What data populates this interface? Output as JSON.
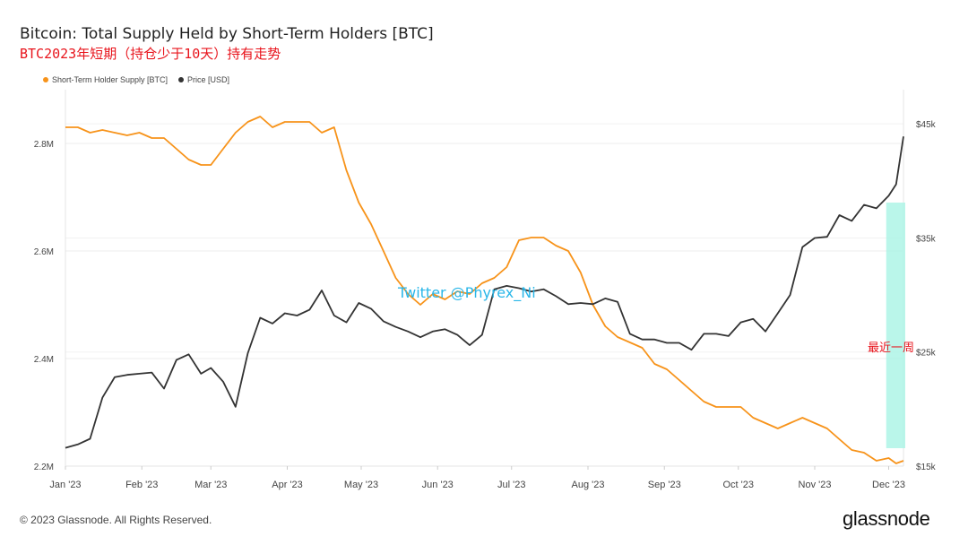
{
  "header": {
    "title": "Bitcoin: Total Supply Held by Short-Term Holders [BTC]",
    "subtitle": "BTC2023年短期（持仓少于10天）持有走势"
  },
  "legend": [
    {
      "label": "Short-Term Holder Supply [BTC]",
      "color": "#f7931a"
    },
    {
      "label": "Price [USD]",
      "color": "#333333"
    }
  ],
  "annotations": {
    "watermark": "Twitter @Phyrex_Ni",
    "last_week": "最近一周"
  },
  "footer": {
    "copyright": "© 2023 Glassnode. All Rights Reserved.",
    "logo": "glassnode"
  },
  "chart_data": {
    "type": "line",
    "title": "Bitcoin: Total Supply Held by Short-Term Holders [BTC]",
    "x_ticks": [
      "Jan '23",
      "Feb '23",
      "Mar '23",
      "Apr '23",
      "May '23",
      "Jun '23",
      "Jul '23",
      "Aug '23",
      "Sep '23",
      "Oct '23",
      "Nov '23",
      "Dec '23"
    ],
    "x_range": [
      "2023-01-01",
      "2023-12-07"
    ],
    "y_left": {
      "ticks": [
        "2.2M",
        "2.4M",
        "2.6M",
        "2.8M"
      ],
      "range": [
        2200000,
        2900000
      ]
    },
    "y_right": {
      "ticks": [
        "$15k",
        "$25k",
        "$35k",
        "$45k"
      ],
      "range": [
        15000,
        48000
      ]
    },
    "grid": true,
    "legend_position": "top-left",
    "series": [
      {
        "name": "Short-Term Holder Supply [BTC]",
        "axis": "left",
        "color": "#f7931a",
        "x": [
          "2023-01-01",
          "2023-01-06",
          "2023-01-11",
          "2023-01-16",
          "2023-01-21",
          "2023-01-26",
          "2023-01-31",
          "2023-02-05",
          "2023-02-10",
          "2023-02-15",
          "2023-02-20",
          "2023-02-25",
          "2023-03-01",
          "2023-03-06",
          "2023-03-11",
          "2023-03-16",
          "2023-03-21",
          "2023-03-26",
          "2023-03-31",
          "2023-04-05",
          "2023-04-10",
          "2023-04-15",
          "2023-04-20",
          "2023-04-25",
          "2023-04-30",
          "2023-05-05",
          "2023-05-10",
          "2023-05-15",
          "2023-05-20",
          "2023-05-25",
          "2023-05-30",
          "2023-06-04",
          "2023-06-09",
          "2023-06-14",
          "2023-06-19",
          "2023-06-24",
          "2023-06-29",
          "2023-07-04",
          "2023-07-09",
          "2023-07-14",
          "2023-07-19",
          "2023-07-24",
          "2023-07-29",
          "2023-08-03",
          "2023-08-08",
          "2023-08-13",
          "2023-08-18",
          "2023-08-23",
          "2023-08-28",
          "2023-09-02",
          "2023-09-07",
          "2023-09-12",
          "2023-09-17",
          "2023-09-22",
          "2023-09-27",
          "2023-10-02",
          "2023-10-07",
          "2023-10-12",
          "2023-10-17",
          "2023-10-22",
          "2023-10-27",
          "2023-11-01",
          "2023-11-06",
          "2023-11-11",
          "2023-11-16",
          "2023-11-21",
          "2023-11-26",
          "2023-12-01",
          "2023-12-04",
          "2023-12-07"
        ],
        "values": [
          2830000,
          2830000,
          2820000,
          2825000,
          2820000,
          2815000,
          2820000,
          2810000,
          2810000,
          2790000,
          2770000,
          2760000,
          2760000,
          2790000,
          2820000,
          2840000,
          2850000,
          2830000,
          2840000,
          2840000,
          2840000,
          2820000,
          2830000,
          2750000,
          2690000,
          2650000,
          2600000,
          2550000,
          2520000,
          2500000,
          2520000,
          2510000,
          2525000,
          2520000,
          2540000,
          2550000,
          2570000,
          2620000,
          2625000,
          2625000,
          2610000,
          2600000,
          2560000,
          2500000,
          2460000,
          2440000,
          2430000,
          2420000,
          2390000,
          2380000,
          2360000,
          2340000,
          2320000,
          2310000,
          2310000,
          2310000,
          2290000,
          2280000,
          2270000,
          2280000,
          2290000,
          2280000,
          2270000,
          2250000,
          2230000,
          2225000,
          2210000,
          2215000,
          2205000,
          2210000
        ]
      },
      {
        "name": "Price [USD]",
        "axis": "right",
        "color": "#333333",
        "x": [
          "2023-01-01",
          "2023-01-06",
          "2023-01-11",
          "2023-01-16",
          "2023-01-21",
          "2023-01-26",
          "2023-01-31",
          "2023-02-05",
          "2023-02-10",
          "2023-02-15",
          "2023-02-20",
          "2023-02-25",
          "2023-03-01",
          "2023-03-06",
          "2023-03-11",
          "2023-03-16",
          "2023-03-21",
          "2023-03-26",
          "2023-03-31",
          "2023-04-05",
          "2023-04-10",
          "2023-04-15",
          "2023-04-20",
          "2023-04-25",
          "2023-04-30",
          "2023-05-05",
          "2023-05-10",
          "2023-05-15",
          "2023-05-20",
          "2023-05-25",
          "2023-05-30",
          "2023-06-04",
          "2023-06-09",
          "2023-06-14",
          "2023-06-19",
          "2023-06-24",
          "2023-06-29",
          "2023-07-04",
          "2023-07-09",
          "2023-07-14",
          "2023-07-19",
          "2023-07-24",
          "2023-07-29",
          "2023-08-03",
          "2023-08-08",
          "2023-08-13",
          "2023-08-18",
          "2023-08-23",
          "2023-08-28",
          "2023-09-02",
          "2023-09-07",
          "2023-09-12",
          "2023-09-17",
          "2023-09-22",
          "2023-09-27",
          "2023-10-02",
          "2023-10-07",
          "2023-10-12",
          "2023-10-17",
          "2023-10-22",
          "2023-10-27",
          "2023-11-01",
          "2023-11-06",
          "2023-11-11",
          "2023-11-16",
          "2023-11-21",
          "2023-11-26",
          "2023-12-01",
          "2023-12-04",
          "2023-12-07"
        ],
        "values": [
          16600,
          16900,
          17400,
          21000,
          22800,
          23000,
          23100,
          23200,
          21800,
          24300,
          24800,
          23100,
          23600,
          22400,
          20200,
          24900,
          28000,
          27500,
          28400,
          28200,
          28700,
          30400,
          28200,
          27600,
          29300,
          28800,
          27700,
          27200,
          26800,
          26300,
          26800,
          27000,
          26500,
          25600,
          26500,
          30500,
          30800,
          30600,
          30300,
          30500,
          29900,
          29200,
          29300,
          29200,
          29700,
          29400,
          26600,
          26100,
          26100,
          25800,
          25800,
          25200,
          26600,
          26600,
          26400,
          27600,
          27900,
          26800,
          28400,
          30000,
          34200,
          35000,
          35100,
          37000,
          36500,
          37900,
          37600,
          38700,
          39700,
          43900
        ]
      }
    ]
  }
}
